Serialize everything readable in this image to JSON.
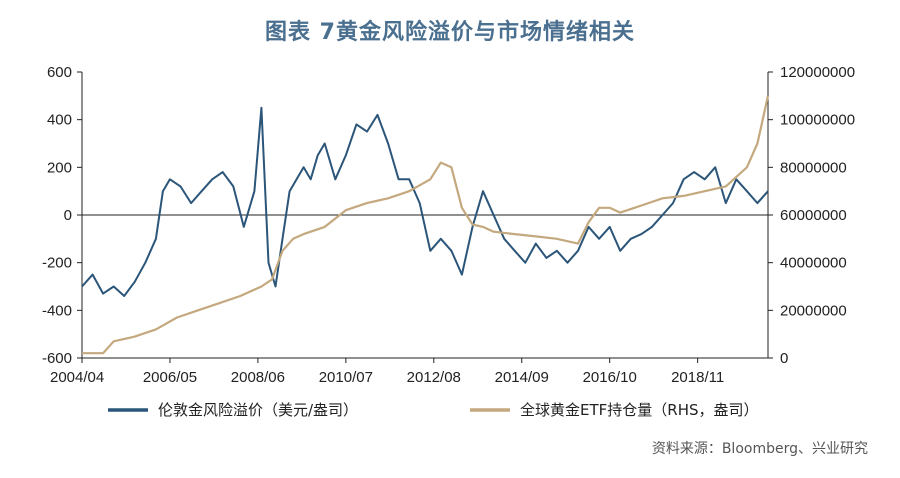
{
  "title": "图表 7黄金风险溢价与市场情绪相关",
  "source": "资料来源：Bloomberg、兴业研究",
  "chart_data": {
    "type": "line",
    "title": "图表 7黄金风险溢价与市场情绪相关",
    "x_tick_labels": [
      "2004/04",
      "2006/05",
      "2008/06",
      "2010/07",
      "2012/08",
      "2014/09",
      "2016/10",
      "2018/11"
    ],
    "xlim": [
      "2004/04",
      "2020/07"
    ],
    "y_left": {
      "lim": [
        -600,
        600
      ],
      "ticks": [
        "600",
        "400",
        "200",
        "0",
        "-200",
        "-400",
        "-600"
      ]
    },
    "y_right": {
      "lim": [
        0,
        120000000
      ],
      "ticks": [
        "120000000",
        "100000000",
        "80000000",
        "60000000",
        "40000000",
        "20000000",
        "0"
      ]
    },
    "zero_line": true,
    "grid": false,
    "legend_position": "bottom",
    "series": [
      {
        "name": "伦敦金风险溢价（美元/盎司）",
        "axis": "left",
        "color": "#2b5579",
        "x": [
          "2004/04",
          "2004/07",
          "2004/10",
          "2005/01",
          "2005/04",
          "2005/07",
          "2005/10",
          "2006/01",
          "2006/03",
          "2006/05",
          "2006/08",
          "2006/11",
          "2007/02",
          "2007/05",
          "2007/08",
          "2007/11",
          "2008/02",
          "2008/05",
          "2008/07",
          "2008/09",
          "2008/11",
          "2009/01",
          "2009/03",
          "2009/05",
          "2009/07",
          "2009/09",
          "2009/11",
          "2010/01",
          "2010/04",
          "2010/07",
          "2010/10",
          "2011/01",
          "2011/04",
          "2011/07",
          "2011/10",
          "2012/01",
          "2012/04",
          "2012/07",
          "2012/10",
          "2013/01",
          "2013/04",
          "2013/07",
          "2013/10",
          "2014/01",
          "2014/04",
          "2014/07",
          "2014/10",
          "2015/01",
          "2015/04",
          "2015/07",
          "2015/10",
          "2016/01",
          "2016/04",
          "2016/07",
          "2016/10",
          "2017/01",
          "2017/04",
          "2017/07",
          "2017/10",
          "2018/01",
          "2018/04",
          "2018/07",
          "2018/10",
          "2019/01",
          "2019/04",
          "2019/07",
          "2019/10",
          "2020/01",
          "2020/04",
          "2020/07"
        ],
        "y": [
          -300,
          -250,
          -330,
          -300,
          -340,
          -280,
          -200,
          -100,
          100,
          150,
          120,
          50,
          100,
          150,
          180,
          120,
          -50,
          100,
          450,
          -200,
          -300,
          -100,
          100,
          150,
          200,
          150,
          250,
          300,
          150,
          250,
          380,
          350,
          420,
          300,
          150,
          150,
          50,
          -150,
          -100,
          -150,
          -250,
          -50,
          100,
          0,
          -100,
          -150,
          -200,
          -120,
          -180,
          -150,
          -200,
          -150,
          -50,
          -100,
          -50,
          -150,
          -100,
          -80,
          -50,
          0,
          50,
          150,
          180,
          150,
          200,
          50,
          150,
          100,
          50,
          100
        ]
      },
      {
        "name": "全球黄金ETF持仓量（RHS，盎司）",
        "axis": "right",
        "color": "#c4a87e",
        "x": [
          "2004/04",
          "2004/10",
          "2005/01",
          "2005/07",
          "2006/01",
          "2006/07",
          "2007/01",
          "2007/07",
          "2008/01",
          "2008/07",
          "2008/10",
          "2009/01",
          "2009/04",
          "2009/07",
          "2010/01",
          "2010/07",
          "2011/01",
          "2011/07",
          "2012/01",
          "2012/07",
          "2012/10",
          "2013/01",
          "2013/04",
          "2013/07",
          "2013/10",
          "2014/01",
          "2014/07",
          "2015/01",
          "2015/07",
          "2016/01",
          "2016/04",
          "2016/07",
          "2016/10",
          "2017/01",
          "2017/07",
          "2018/01",
          "2018/07",
          "2019/01",
          "2019/07",
          "2019/10",
          "2020/01",
          "2020/04",
          "2020/07"
        ],
        "y": [
          2000000,
          2000000,
          7000000,
          9000000,
          12000000,
          17000000,
          20000000,
          23000000,
          26000000,
          30000000,
          33000000,
          45000000,
          50000000,
          52000000,
          55000000,
          62000000,
          65000000,
          67000000,
          70000000,
          75000000,
          82000000,
          80000000,
          63000000,
          56000000,
          55000000,
          53000000,
          52000000,
          51000000,
          50000000,
          48000000,
          57000000,
          63000000,
          63000000,
          61000000,
          64000000,
          67000000,
          68000000,
          70000000,
          72000000,
          76000000,
          80000000,
          90000000,
          110000000
        ]
      }
    ]
  }
}
